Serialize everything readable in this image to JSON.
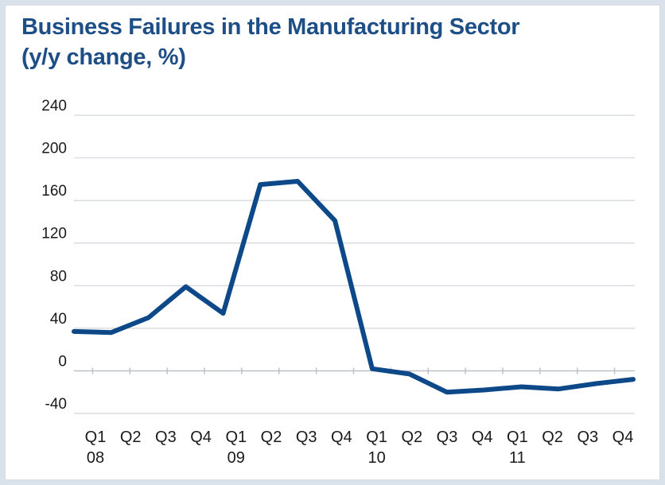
{
  "chart_data": {
    "type": "line",
    "title": "Business Failures in the Manufacturing Sector",
    "subtitle": "(y/y change, %)",
    "xlabel": "",
    "ylabel": "",
    "x": [
      "Q1 08",
      "Q2 08",
      "Q3 08",
      "Q4 08",
      "Q1 09",
      "Q2 09",
      "Q3 09",
      "Q4 09",
      "Q1 10",
      "Q2 10",
      "Q3 10",
      "Q4 10",
      "Q1 11",
      "Q2 11",
      "Q3 11",
      "Q4 11"
    ],
    "quarter_labels": [
      "Q1",
      "Q2",
      "Q3",
      "Q4",
      "Q1",
      "Q2",
      "Q3",
      "Q4",
      "Q1",
      "Q2",
      "Q3",
      "Q4",
      "Q1",
      "Q2",
      "Q3",
      "Q4"
    ],
    "year_labels": [
      "08",
      "09",
      "10",
      "11"
    ],
    "y_ticks": [
      -40,
      0,
      40,
      80,
      120,
      160,
      200,
      240
    ],
    "ylim": [
      -40,
      240
    ],
    "grid": true,
    "series": [
      {
        "values": [
          37,
          36,
          50,
          79,
          54,
          175,
          178,
          141,
          2,
          -3,
          -20,
          -18,
          -15,
          -17,
          -12,
          -8
        ]
      }
    ],
    "colors": {
      "line": "#0d4889",
      "grid": "#d2d6da",
      "title": "#1d4f86"
    }
  }
}
